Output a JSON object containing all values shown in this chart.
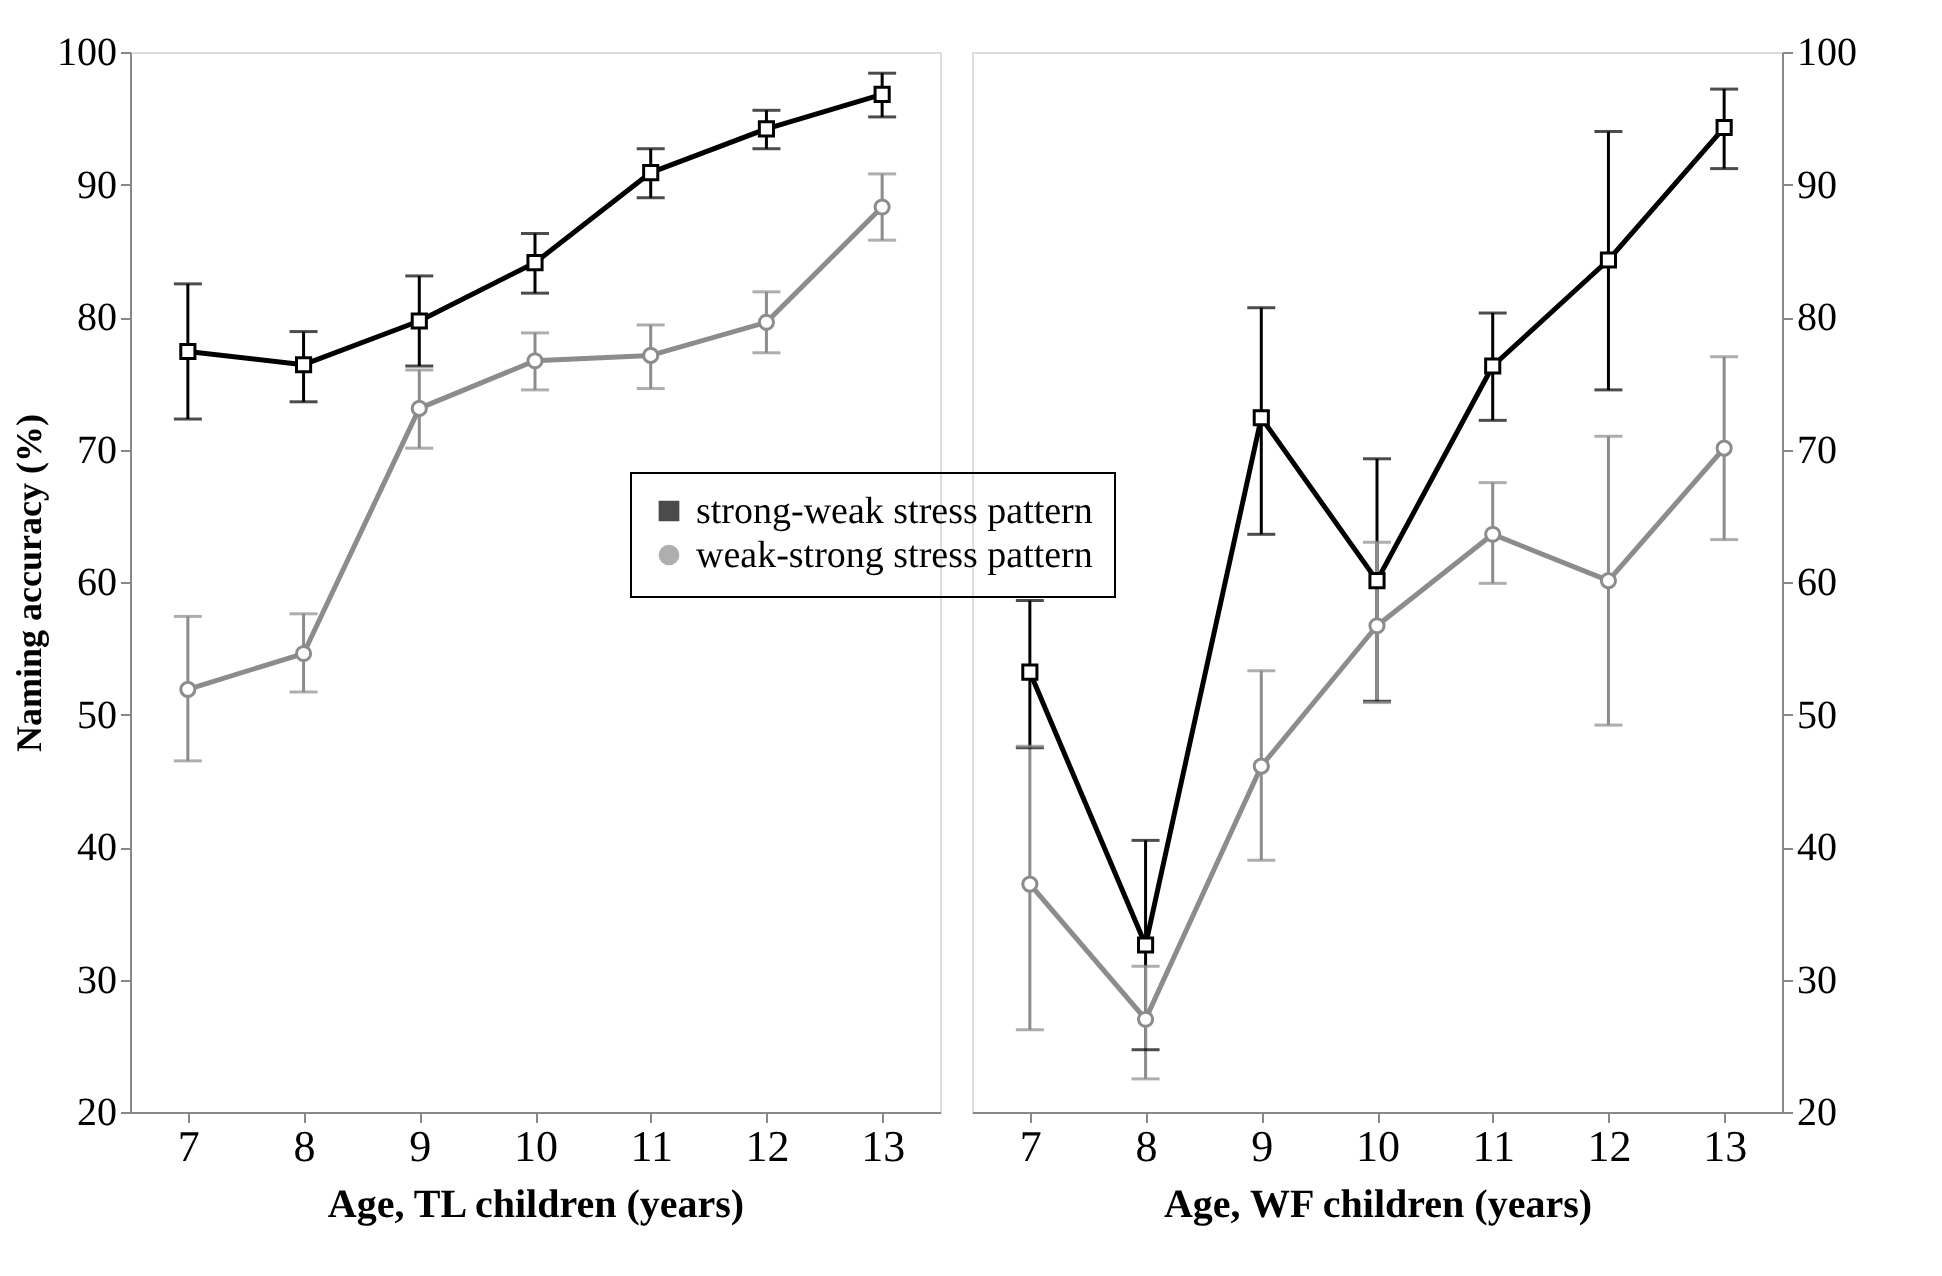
{
  "chart_data": [
    {
      "type": "line",
      "xlabel": "Age, TL children (years)",
      "ylabel": "Naming accuracy (%)",
      "categories": [
        "7",
        "8",
        "9",
        "10",
        "11",
        "12",
        "13"
      ],
      "ylim": [
        20,
        100
      ],
      "yticks": [
        20,
        30,
        40,
        50,
        60,
        70,
        80,
        90,
        100
      ],
      "grid": false,
      "legend": "center",
      "series": [
        {
          "name": "strong-weak stress pattern",
          "color": "#000000",
          "marker": "square",
          "values": [
            77.4,
            76.4,
            79.7,
            84.1,
            90.9,
            94.2,
            96.8
          ],
          "errors": [
            [
              72.3,
              82.5
            ],
            [
              73.6,
              78.9
            ],
            [
              76.3,
              83.1
            ],
            [
              81.8,
              86.3
            ],
            [
              89.0,
              92.7
            ],
            [
              92.7,
              95.6
            ],
            [
              95.1,
              98.4
            ]
          ]
        },
        {
          "name": "weak-strong stress pattern",
          "color": "#8c8c8c",
          "marker": "circle",
          "values": [
            51.9,
            54.6,
            73.1,
            76.7,
            77.1,
            79.6,
            88.3
          ],
          "errors": [
            [
              46.5,
              57.4
            ],
            [
              51.7,
              57.6
            ],
            [
              70.1,
              76.0
            ],
            [
              74.5,
              78.8
            ],
            [
              74.6,
              79.4
            ],
            [
              77.3,
              81.9
            ],
            [
              85.8,
              90.8
            ]
          ]
        }
      ]
    },
    {
      "type": "line",
      "xlabel": "Age, WF children (years)",
      "categories": [
        "7",
        "8",
        "9",
        "10",
        "11",
        "12",
        "13"
      ],
      "ylim": [
        20,
        100
      ],
      "yticks": [
        20,
        30,
        40,
        50,
        60,
        70,
        80,
        90,
        100
      ],
      "grid": false,
      "series": [
        {
          "name": "strong-weak stress pattern",
          "color": "#000000",
          "marker": "square",
          "values": [
            53.2,
            32.6,
            72.4,
            60.1,
            76.3,
            84.3,
            94.3
          ],
          "errors": [
            [
              47.5,
              58.6
            ],
            [
              24.7,
              40.5
            ],
            [
              63.6,
              80.7
            ],
            [
              51.0,
              69.3
            ],
            [
              72.2,
              80.3
            ],
            [
              74.5,
              94.0
            ],
            [
              91.2,
              97.2
            ]
          ]
        },
        {
          "name": "weak-strong stress pattern",
          "color": "#8c8c8c",
          "marker": "circle",
          "values": [
            37.2,
            27.0,
            46.1,
            56.7,
            63.6,
            60.1,
            70.1
          ],
          "errors": [
            [
              26.2,
              47.6
            ],
            [
              22.5,
              31.0
            ],
            [
              39.0,
              53.3
            ],
            [
              50.9,
              63.0
            ],
            [
              59.9,
              67.5
            ],
            [
              49.2,
              71.0
            ],
            [
              63.2,
              77.0
            ]
          ]
        }
      ]
    }
  ]
}
